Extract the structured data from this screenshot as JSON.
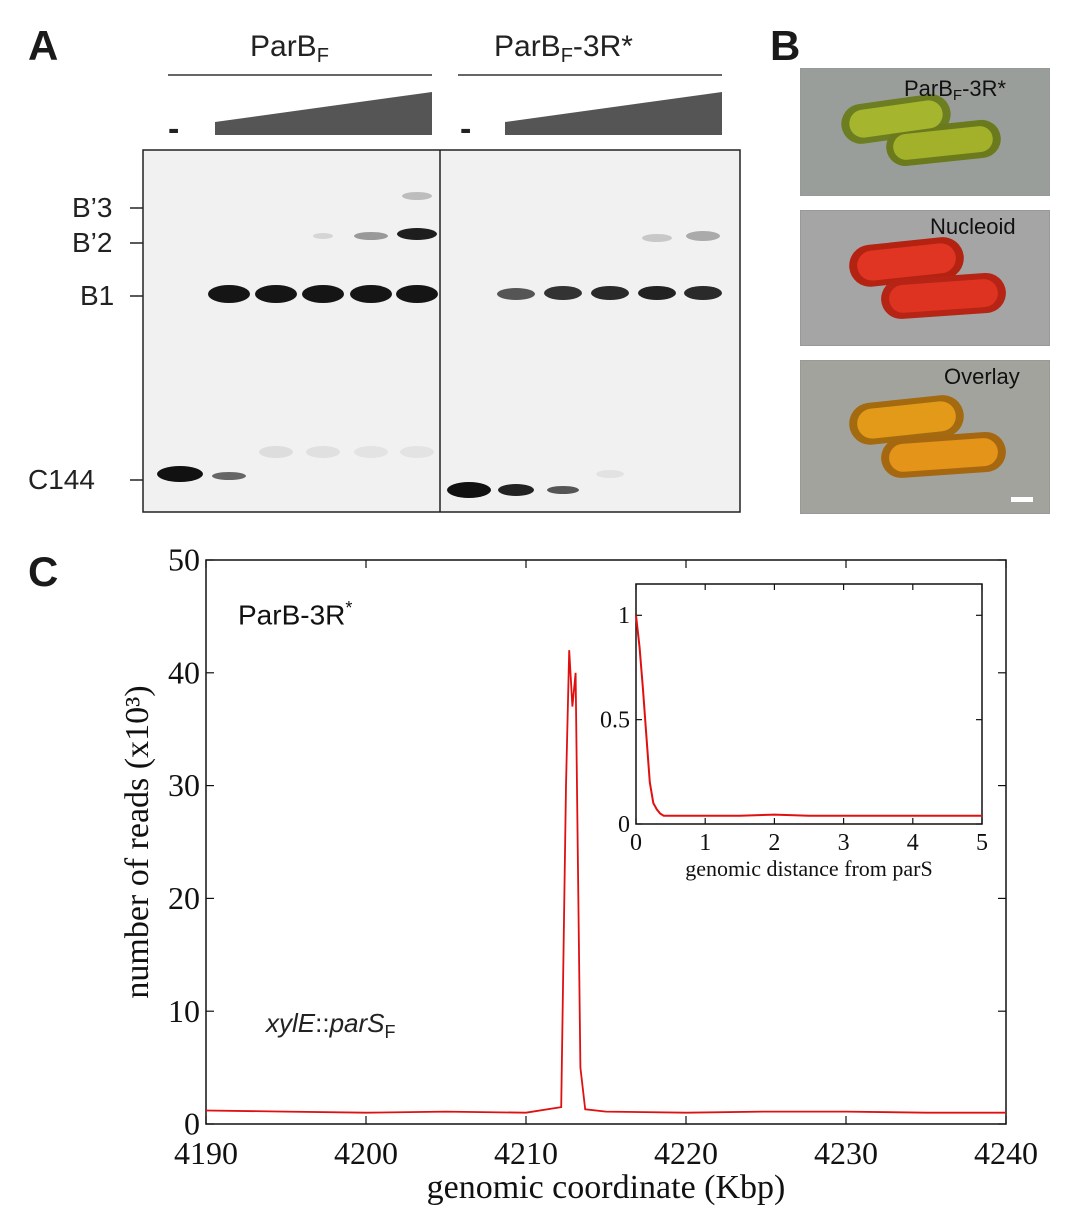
{
  "panels": {
    "a": {
      "letter": "A",
      "groups": [
        {
          "label": "ParB",
          "sub": "F",
          "suffix": ""
        },
        {
          "label": "ParB",
          "sub": "F",
          "suffix": "-3R*"
        }
      ],
      "no_protein_marker": "-",
      "band_labels": [
        "B’3",
        "B’2",
        "B1",
        "C144"
      ]
    },
    "b": {
      "letter": "B",
      "images": [
        {
          "label": "ParB",
          "sub": "F",
          "suffix": "-3R*",
          "stain": "yellow"
        },
        {
          "label": "Nucleoid",
          "sub": "",
          "suffix": "",
          "stain": "red"
        },
        {
          "label": "Overlay",
          "sub": "",
          "suffix": "",
          "stain": "orange"
        }
      ]
    },
    "c": {
      "letter": "C",
      "annotation_strain": "ParB-3R",
      "annotation_strain_sup": "*",
      "annotation_locus_italic": "xylE",
      "annotation_locus_sep": "::",
      "annotation_locus_italic2": "parS",
      "annotation_locus_sub": "F"
    }
  },
  "chart_data": [
    {
      "type": "line",
      "xlabel": "genomic coordinate (Kbp)",
      "ylabel": "number of reads (x10³)",
      "xlim": [
        4190,
        4240
      ],
      "ylim": [
        0,
        50
      ],
      "xticks": [
        "4190",
        "4200",
        "4210",
        "4220",
        "4230",
        "4240"
      ],
      "yticks": [
        "0",
        "10",
        "20",
        "30",
        "40",
        "50"
      ],
      "series": [
        {
          "color": "#e01010",
          "x": [
            4190,
            4195,
            4200,
            4205,
            4210,
            4212.2,
            4212.5,
            4212.7,
            4212.9,
            4213.1,
            4213.4,
            4213.7,
            4215,
            4220,
            4225,
            4230,
            4235,
            4240
          ],
          "y": [
            1.2,
            1.1,
            1.0,
            1.1,
            1.0,
            1.5,
            30,
            42,
            37,
            40,
            5,
            1.3,
            1.1,
            1.0,
            1.1,
            1.1,
            1.0,
            1.0
          ]
        }
      ]
    },
    {
      "type": "line",
      "xlabel": "genomic distance from parS",
      "ylabel": "",
      "xlim": [
        0,
        5
      ],
      "ylim": [
        0,
        1.15
      ],
      "xticks": [
        "0",
        "1",
        "2",
        "3",
        "4",
        "5"
      ],
      "yticks": [
        "0",
        "0.5",
        "1"
      ],
      "series": [
        {
          "color": "#e01010",
          "x": [
            0,
            0.05,
            0.1,
            0.15,
            0.2,
            0.25,
            0.3,
            0.35,
            0.4,
            0.5,
            1,
            1.5,
            2,
            2.5,
            3,
            3.5,
            4,
            4.5,
            5
          ],
          "y": [
            1.0,
            0.85,
            0.65,
            0.42,
            0.2,
            0.1,
            0.07,
            0.05,
            0.04,
            0.04,
            0.04,
            0.04,
            0.045,
            0.04,
            0.04,
            0.04,
            0.04,
            0.04,
            0.04
          ]
        }
      ]
    }
  ]
}
